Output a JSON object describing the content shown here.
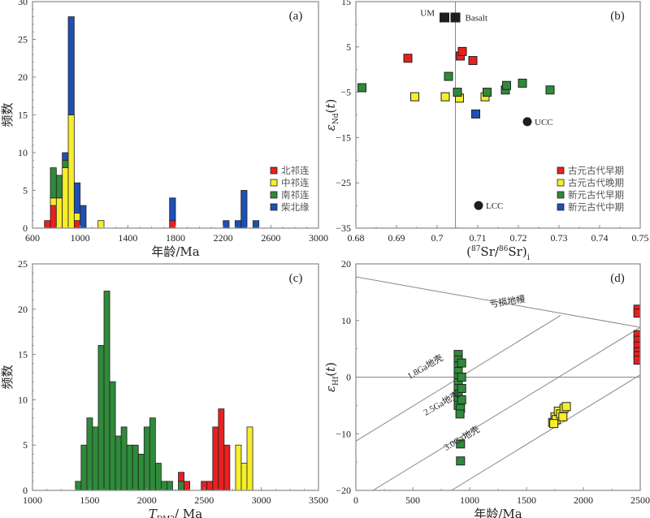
{
  "colors": {
    "red": "#e82020",
    "yellow": "#f7ee2a",
    "green": "#2f8a3a",
    "blue": "#1f4fb5",
    "black": "#1e1e1e"
  },
  "chart_data": [
    {
      "id": "a",
      "type": "bar",
      "panel_label": "(a)",
      "stacked": true,
      "xlabel": "年龄/Ma",
      "ylabel": "频数",
      "xlim": [
        600,
        3000
      ],
      "ylim": [
        0,
        30
      ],
      "xticks": [
        600,
        1000,
        1400,
        1800,
        2200,
        2600,
        3000
      ],
      "yticks": [
        0,
        5,
        10,
        15,
        20,
        25,
        30
      ],
      "bin_width": 50,
      "legend_position": "right",
      "series": [
        {
          "name": "北祁连",
          "color": "red",
          "bins": [
            [
              700,
              1
            ],
            [
              750,
              3
            ],
            [
              950,
              1
            ],
            [
              1750,
              1
            ]
          ]
        },
        {
          "name": "中祁连",
          "color": "yellow",
          "bins": [
            [
              750,
              1
            ],
            [
              800,
              4
            ],
            [
              850,
              8
            ],
            [
              900,
              15
            ],
            [
              950,
              1
            ],
            [
              1150,
              1
            ]
          ]
        },
        {
          "name": "南祁连",
          "color": "green",
          "bins": [
            [
              750,
              4
            ],
            [
              800,
              3
            ],
            [
              850,
              1
            ]
          ]
        },
        {
          "name": "柴北缘",
          "color": "blue",
          "bins": [
            [
              850,
              1
            ],
            [
              900,
              13
            ],
            [
              950,
              4
            ],
            [
              1000,
              3
            ],
            [
              1750,
              3
            ],
            [
              2200,
              1
            ],
            [
              2300,
              1
            ],
            [
              2350,
              5
            ],
            [
              2450,
              1
            ]
          ]
        }
      ]
    },
    {
      "id": "b",
      "type": "scatter",
      "panel_label": "(b)",
      "xlabel": "(87Sr/86Sr)i",
      "ylabel": "εNd(t)",
      "xlim": [
        0.68,
        0.75
      ],
      "ylim": [
        -35,
        15
      ],
      "xticks": [
        "0.68",
        "0.69",
        "0.7",
        "0.71",
        "0.72",
        "0.73",
        "0.74",
        "0.75"
      ],
      "yticks": [
        15,
        5,
        -5,
        -15,
        -25,
        -35
      ],
      "vline_x": 0.7045,
      "legend_position": "bottom-right",
      "reference_points": [
        {
          "label": "UM",
          "x": 0.7018,
          "y": 11.5,
          "shape": "square",
          "color": "black"
        },
        {
          "label": "Basalt",
          "x": 0.7045,
          "y": 11.5,
          "shape": "square",
          "color": "black"
        },
        {
          "label": "UCC",
          "x": 0.7222,
          "y": -11.5,
          "shape": "circle",
          "color": "black"
        },
        {
          "label": "LCC",
          "x": 0.7102,
          "y": -30,
          "shape": "circle",
          "color": "black"
        }
      ],
      "series": [
        {
          "name": "古元古代早期",
          "color": "red",
          "points": [
            [
              0.6928,
              2.5
            ],
            [
              0.7057,
              3
            ],
            [
              0.7062,
              4
            ],
            [
              0.7088,
              2
            ]
          ]
        },
        {
          "name": "古元古代晚期",
          "color": "yellow",
          "points": [
            [
              0.6945,
              -6
            ],
            [
              0.702,
              -6
            ],
            [
              0.7055,
              -6.3
            ],
            [
              0.7118,
              -6
            ]
          ]
        },
        {
          "name": "新元古代早期",
          "color": "green",
          "points": [
            [
              0.6815,
              -4
            ],
            [
              0.7028,
              -1.5
            ],
            [
              0.705,
              -5
            ],
            [
              0.7123,
              -5
            ],
            [
              0.7168,
              -4.5
            ],
            [
              0.7171,
              -3.5
            ],
            [
              0.721,
              -3
            ],
            [
              0.7278,
              -4.5
            ]
          ]
        },
        {
          "name": "新元古代中期",
          "color": "blue",
          "points": [
            [
              0.7095,
              -9.8
            ]
          ]
        }
      ]
    },
    {
      "id": "c",
      "type": "bar",
      "panel_label": "(c)",
      "stacked": true,
      "xlabel": "T_DM2/Ma",
      "ylabel": "频数",
      "xlim": [
        1000,
        3500
      ],
      "ylim": [
        0,
        25
      ],
      "xticks": [
        1000,
        1500,
        2000,
        2500,
        3000,
        3500
      ],
      "yticks": [
        0,
        5,
        10,
        15,
        20,
        25
      ],
      "bin_width": 50,
      "series": [
        {
          "name": "green",
          "color": "green",
          "bins": [
            [
              1375,
              1
            ],
            [
              1425,
              5
            ],
            [
              1475,
              8
            ],
            [
              1525,
              7
            ],
            [
              1575,
              16
            ],
            [
              1625,
              22
            ],
            [
              1675,
              12
            ],
            [
              1725,
              6
            ],
            [
              1775,
              7
            ],
            [
              1825,
              5
            ],
            [
              1875,
              5
            ],
            [
              1925,
              4
            ],
            [
              1975,
              7
            ],
            [
              2025,
              8
            ],
            [
              2075,
              3
            ],
            [
              2125,
              1
            ],
            [
              2175,
              1
            ],
            [
              2275,
              1
            ]
          ]
        },
        {
          "name": "red",
          "color": "red",
          "bins": [
            [
              2275,
              1
            ],
            [
              2325,
              1
            ],
            [
              2475,
              1
            ],
            [
              2525,
              1
            ],
            [
              2575,
              7
            ],
            [
              2625,
              9
            ],
            [
              2675,
              5
            ]
          ]
        },
        {
          "name": "yellow",
          "color": "yellow",
          "bins": [
            [
              2775,
              5
            ],
            [
              2825,
              3
            ],
            [
              2875,
              7
            ]
          ]
        }
      ]
    },
    {
      "id": "d",
      "type": "scatter",
      "panel_label": "(d)",
      "xlabel": "年龄/Ma",
      "ylabel": "εHf(t)",
      "xlim": [
        0,
        2500
      ],
      "ylim": [
        -20,
        20
      ],
      "xticks": [
        0,
        500,
        1000,
        1500,
        2000,
        2500
      ],
      "yticks": [
        20,
        10,
        0,
        -10,
        -20
      ],
      "hline_y": 0,
      "reference_lines": [
        {
          "label": "亏损地幔",
          "from": [
            0,
            17.7
          ],
          "to": [
            2500,
            8.8
          ]
        },
        {
          "label": "1.8Ga地壳",
          "from": [
            0,
            -11.3
          ],
          "to": [
            1800,
            10.9
          ]
        },
        {
          "label": "2.5Ga地壳",
          "from": [
            150,
            -20
          ],
          "to": [
            2500,
            8.8
          ]
        },
        {
          "label": "3.0Ga地壳",
          "from": [
            840,
            -20
          ],
          "to": [
            2500,
            0.4
          ]
        }
      ],
      "series": [
        {
          "name": "green",
          "color": "green",
          "points": [
            [
              900,
              4
            ],
            [
              900,
              3
            ],
            [
              900,
              2
            ],
            [
              900,
              1
            ],
            [
              900,
              0
            ],
            [
              900,
              -1
            ],
            [
              900,
              -2
            ],
            [
              900,
              -3
            ],
            [
              900,
              -4
            ],
            [
              900,
              -5
            ],
            [
              930,
              2.5
            ],
            [
              930,
              0
            ],
            [
              930,
              -2
            ],
            [
              930,
              -4
            ],
            [
              920,
              -5.5
            ],
            [
              915,
              -6.5
            ],
            [
              920,
              -11.8
            ],
            [
              920,
              -14.8
            ]
          ]
        },
        {
          "name": "yellow",
          "color": "yellow",
          "points": [
            [
              1730,
              -8
            ],
            [
              1750,
              -7
            ],
            [
              1760,
              -7.5
            ],
            [
              1780,
              -6
            ],
            [
              1800,
              -6.5
            ],
            [
              1820,
              -7
            ],
            [
              1830,
              -5.5
            ],
            [
              1850,
              -5.2
            ],
            [
              1740,
              -8.2
            ]
          ]
        },
        {
          "name": "red",
          "color": "red",
          "points": [
            [
              2480,
              12
            ],
            [
              2480,
              11.3
            ],
            [
              2480,
              7.5
            ],
            [
              2480,
              6.5
            ],
            [
              2480,
              5.5
            ],
            [
              2480,
              4.5
            ],
            [
              2480,
              3.8
            ],
            [
              2480,
              3
            ]
          ]
        }
      ]
    }
  ]
}
